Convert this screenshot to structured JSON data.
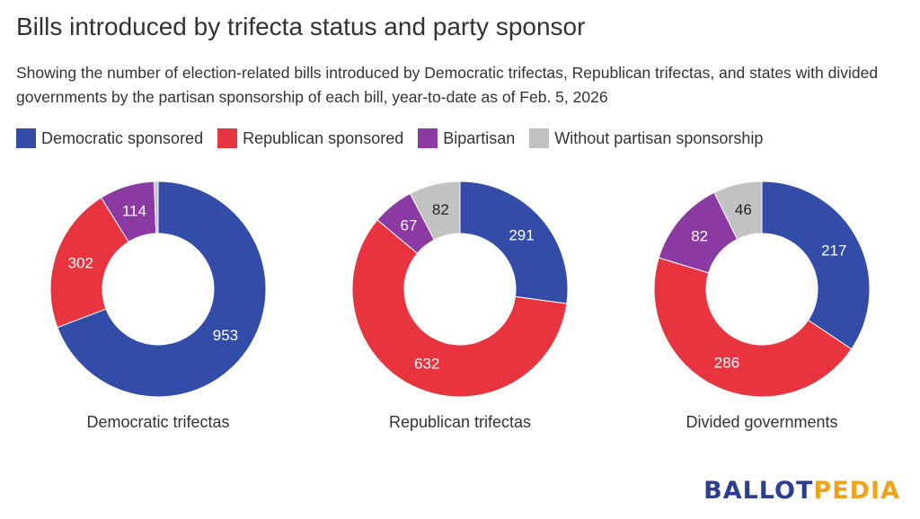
{
  "title": "Bills introduced by trifecta status and party sponsor",
  "subtitle": "Showing the number of election-related bills introduced by Democratic trifectas, Republican trifectas, and states with divided governments by the partisan sponsorship of each bill, year-to-date as of Feb. 5, 2026",
  "legend": [
    {
      "label": "Democratic sponsored",
      "color": "#334ca8"
    },
    {
      "label": "Republican sponsored",
      "color": "#e8343f"
    },
    {
      "label": "Bipartisan",
      "color": "#8b3aa3"
    },
    {
      "label": "Without partisan sponsorship",
      "color": "#c2c2c2"
    }
  ],
  "logo": {
    "part1": "BALLOT",
    "part2": "PEDIA"
  },
  "chart_data": [
    {
      "type": "pie",
      "title": "Democratic trifectas",
      "categories": [
        "Democratic sponsored",
        "Republican sponsored",
        "Bipartisan",
        "Without partisan sponsorship"
      ],
      "values": [
        953,
        302,
        114,
        8
      ],
      "labels": [
        "953",
        "302",
        "114",
        ""
      ]
    },
    {
      "type": "pie",
      "title": "Republican trifectas",
      "categories": [
        "Democratic sponsored",
        "Republican sponsored",
        "Bipartisan",
        "Without partisan sponsorship"
      ],
      "values": [
        291,
        632,
        67,
        82
      ],
      "labels": [
        "291",
        "632",
        "67",
        "82"
      ]
    },
    {
      "type": "pie",
      "title": "Divided governments",
      "categories": [
        "Democratic sponsored",
        "Republican sponsored",
        "Bipartisan",
        "Without partisan sponsorship"
      ],
      "values": [
        217,
        286,
        82,
        46
      ],
      "labels": [
        "217",
        "286",
        "82",
        "46"
      ]
    }
  ]
}
